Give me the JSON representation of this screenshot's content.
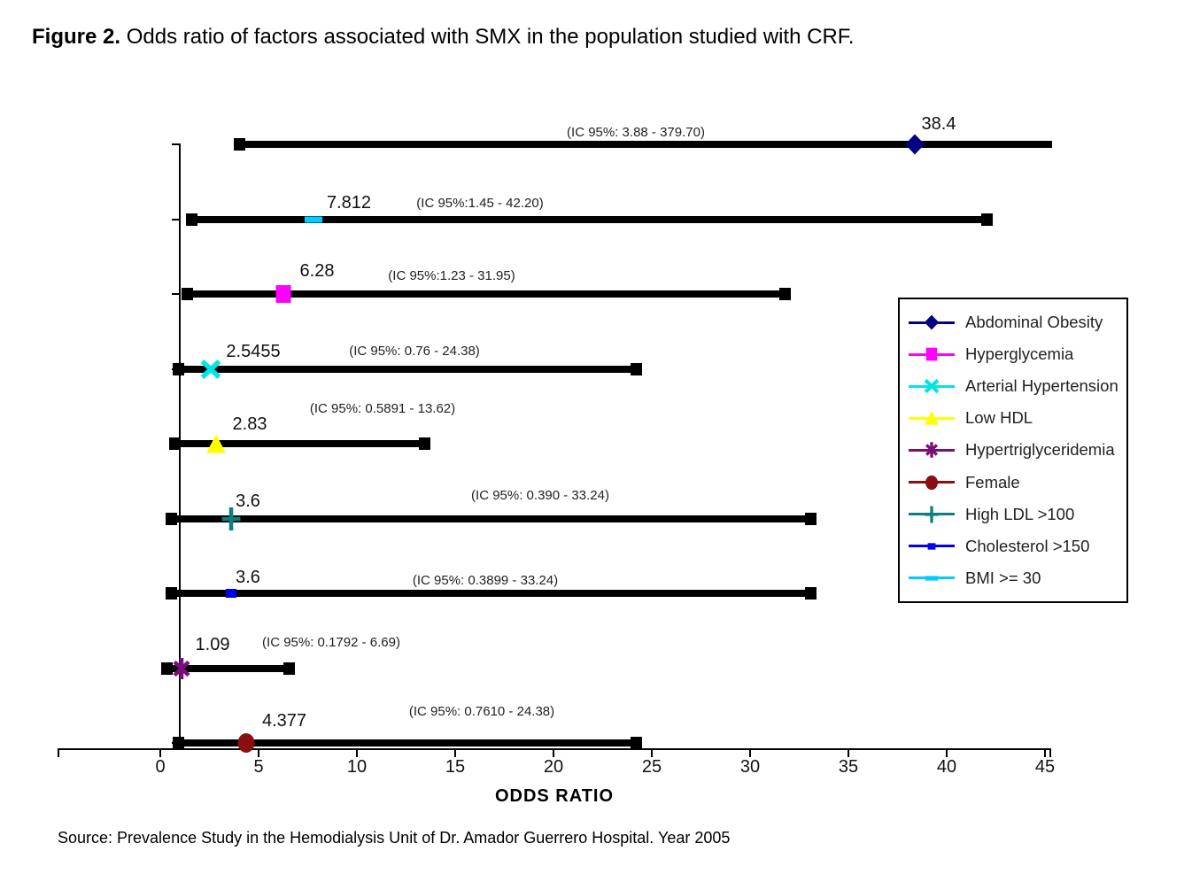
{
  "title": {
    "bold": "Figure 2.",
    "rest": " Odds ratio of factors associated with SMX in the population studied with CRF."
  },
  "source": "Source: Prevalence Study in the Hemodialysis Unit of Dr. Amador Guerrero Hospital. Year 2005",
  "chart_data": {
    "type": "scatter",
    "subtype": "forest-plot-odds-ratios",
    "xlabel": "ODDS RATIO",
    "xlim": [
      0,
      45
    ],
    "xticks": [
      0,
      5,
      10,
      15,
      20,
      25,
      30,
      35,
      40,
      45
    ],
    "reference_line_x": 1,
    "grid": false,
    "legend_position": "right",
    "series": [
      {
        "name": "Abdominal Obesity",
        "marker": "diamond",
        "color": "#000080",
        "value": 38.4,
        "value_label": "38.4",
        "ci_low": 3.88,
        "ci_high": 379.7,
        "ci_label": "(IC 95%: 3.88 - 379.70)",
        "clipped": true
      },
      {
        "name": "BMI >= 30",
        "marker": "dash",
        "color": "#00CCFF",
        "value": 7.812,
        "value_label": "7.812",
        "ci_low": 1.45,
        "ci_high": 42.2,
        "ci_label": "(IC 95%:1.45 - 42.20)",
        "clipped": false
      },
      {
        "name": "Hyperglycemia",
        "marker": "square",
        "color": "#FF00FF",
        "value": 6.28,
        "value_label": "6.28",
        "ci_low": 1.23,
        "ci_high": 31.95,
        "ci_label": "(IC 95%:1.23 - 31.95)",
        "clipped": false
      },
      {
        "name": "Arterial Hypertension",
        "marker": "x",
        "color": "#00E6E6",
        "value": 2.5455,
        "value_label": "2.5455",
        "ci_low": 0.76,
        "ci_high": 24.38,
        "ci_label": "(IC 95%: 0.76 - 24.38)",
        "clipped": false
      },
      {
        "name": "Low HDL",
        "marker": "triangle",
        "color": "#FFFF00",
        "value": 2.83,
        "value_label": "2.83",
        "ci_low": 0.5891,
        "ci_high": 13.62,
        "ci_label": "(IC 95%: 0.5891 - 13.62)",
        "clipped": false
      },
      {
        "name": "High LDL >100",
        "marker": "plus",
        "color": "#0E7E7E",
        "value": 3.6,
        "value_label": "3.6",
        "ci_low": 0.39,
        "ci_high": 33.24,
        "ci_label": "(IC 95%: 0.390  - 33.24)",
        "clipped": false
      },
      {
        "name": "Cholesterol >150",
        "marker": "smallsq",
        "color": "#0000EE",
        "value": 3.6,
        "value_label": "3.6",
        "ci_low": 0.3899,
        "ci_high": 33.24,
        "ci_label": "(IC 95%: 0.3899 - 33.24)",
        "clipped": false
      },
      {
        "name": "Hypertriglyceridemia",
        "marker": "asterisk",
        "color": "#7B0E7B",
        "value": 1.09,
        "value_label": "1.09",
        "ci_low": 0.1792,
        "ci_high": 6.69,
        "ci_label": "(IC 95%: 0.1792 - 6.69)",
        "clipped": false
      },
      {
        "name": "Female",
        "marker": "circle",
        "color": "#8B0F0F",
        "value": 4.377,
        "value_label": "4.377",
        "ci_low": 0.761,
        "ci_high": 24.38,
        "ci_label": "(IC 95%: 0.7610 - 24.38)",
        "clipped": false
      }
    ]
  },
  "legend": {
    "items": [
      {
        "label": "Abdominal Obesity",
        "marker": "diamond",
        "color": "#000080"
      },
      {
        "label": "Hyperglycemia",
        "marker": "square",
        "color": "#FF00FF"
      },
      {
        "label": "Arterial Hypertension",
        "marker": "x",
        "color": "#00E6E6"
      },
      {
        "label": "Low HDL",
        "marker": "triangle",
        "color": "#FFFF00"
      },
      {
        "label": "Hypertriglyceridemia",
        "marker": "asterisk",
        "color": "#7B0E7B"
      },
      {
        "label": "Female",
        "marker": "circle",
        "color": "#8B0F0F"
      },
      {
        "label": "High LDL >100",
        "marker": "plus",
        "color": "#0E7E7E"
      },
      {
        "label": "Cholesterol >150",
        "marker": "smallsq",
        "color": "#0000EE"
      },
      {
        "label": "BMI >= 30",
        "marker": "dash",
        "color": "#00CCFF"
      }
    ]
  }
}
